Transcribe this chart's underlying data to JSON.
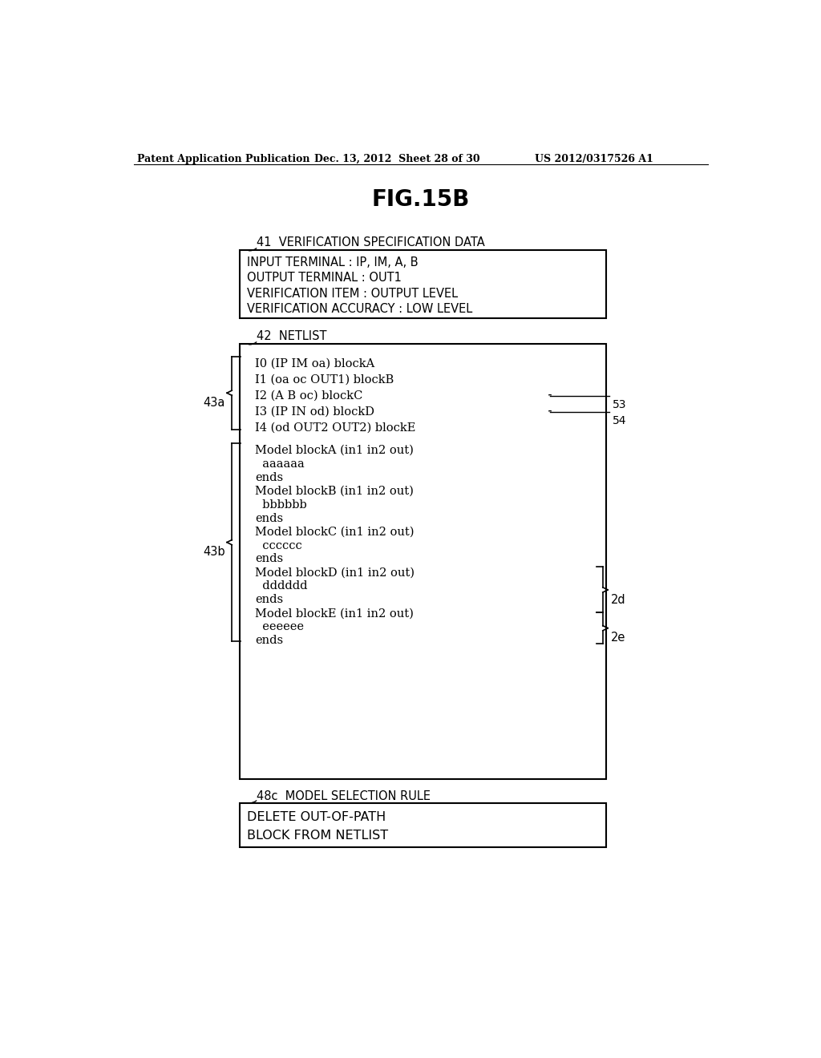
{
  "bg_color": "#ffffff",
  "header_left": "Patent Application Publication",
  "header_mid": "Dec. 13, 2012  Sheet 28 of 30",
  "header_right": "US 2012/0317526 A1",
  "fig_title": "FIG.15B",
  "label_41": "41  VERIFICATION SPECIFICATION DATA",
  "box1_lines": [
    "INPUT TERMINAL : IP, IM, A, B",
    "OUTPUT TERMINAL : OUT1",
    "VERIFICATION ITEM : OUTPUT LEVEL",
    "VERIFICATION ACCURACY : LOW LEVEL"
  ],
  "label_42": "42  NETLIST",
  "label_43a": "43a",
  "netlist_43a_lines": [
    "I0 (IP IM oa) blockA",
    "I1 (oa oc OUT1) blockB",
    "I2 (A B oc) blockC",
    "I3 (IP IN od) blockD",
    "I4 (od OUT2 OUT2) blockE"
  ],
  "label_43b": "43b",
  "netlist_43b_lines": [
    "Model blockA (in1 in2 out)",
    "  aaaaaa",
    "ends",
    "Model blockB (in1 in2 out)",
    "  bbbbbb",
    "ends",
    "Model blockC (in1 in2 out)",
    "  cccccc",
    "ends",
    "Model blockD (in1 in2 out)",
    "  dddddd",
    "ends",
    "Model blockE (in1 in2 out)",
    "  eeeeee",
    "ends"
  ],
  "label_53": "53",
  "label_54": "54",
  "label_2d": "2d",
  "label_2e": "2e",
  "label_48c": "48c  MODEL SELECTION RULE",
  "box3_lines": [
    "DELETE OUT-OF-PATH",
    "BLOCK FROM NETLIST"
  ]
}
